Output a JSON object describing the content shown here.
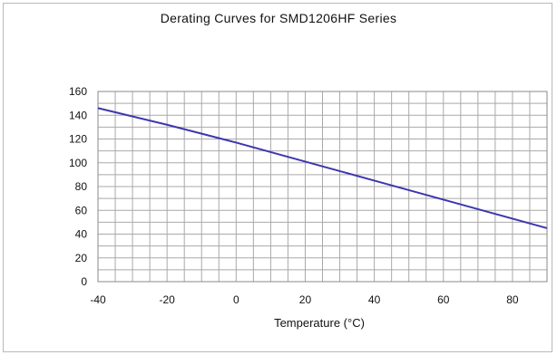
{
  "chart_data": {
    "type": "line",
    "title": "Derating Curves for SMD1206HF Series",
    "xlabel": "Temperature (°C)",
    "ylabel": "",
    "xlim": [
      -40,
      90
    ],
    "ylim": [
      0,
      160
    ],
    "x_ticks": [
      -40,
      -20,
      0,
      20,
      40,
      60,
      80
    ],
    "y_ticks": [
      0,
      20,
      40,
      60,
      80,
      100,
      120,
      140,
      160
    ],
    "grid": true,
    "x_minor_step": 5,
    "y_minor_step": 10,
    "series": [
      {
        "color": "#3b37b0",
        "x": [
          -40,
          -20,
          0,
          20,
          40,
          60,
          80,
          90
        ],
        "y": [
          146,
          132,
          117,
          101,
          85,
          69,
          53,
          45
        ]
      }
    ]
  }
}
